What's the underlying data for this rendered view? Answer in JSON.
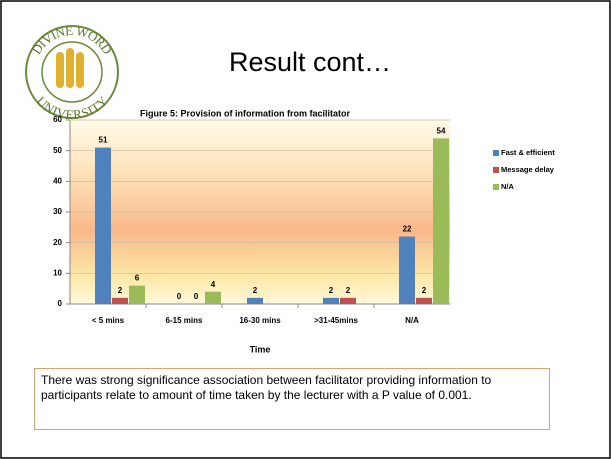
{
  "logo": {
    "top": "DIVINE WORD",
    "bottom": "UNIVERSITY"
  },
  "slide_title": "Result cont…",
  "note": "There was strong significance association between facilitator providing information to participants relate to amount of time taken by the lecturer with a P value of 0.001.",
  "chart_data": {
    "type": "bar",
    "title": "Figure 5: Provision of information from facilitator",
    "x_label": "Time",
    "categories": [
      "< 5 mins",
      "6-15 mins",
      "16-30 mins",
      ">31-45mins",
      "N/A"
    ],
    "series": [
      {
        "name": "Fast & efficient",
        "color": "#4f81bd",
        "values": [
          51,
          0,
          2,
          2,
          22
        ]
      },
      {
        "name": "Message delay",
        "color": "#c0504d",
        "values": [
          2,
          0,
          null,
          2,
          2
        ]
      },
      {
        "name": "N/A",
        "color": "#9bbb59",
        "values": [
          6,
          4,
          null,
          null,
          54
        ]
      }
    ],
    "ylim": [
      0,
      60
    ],
    "yticks": [
      0,
      10,
      20,
      30,
      40,
      50,
      60
    ],
    "grid": true,
    "legend": "right"
  }
}
